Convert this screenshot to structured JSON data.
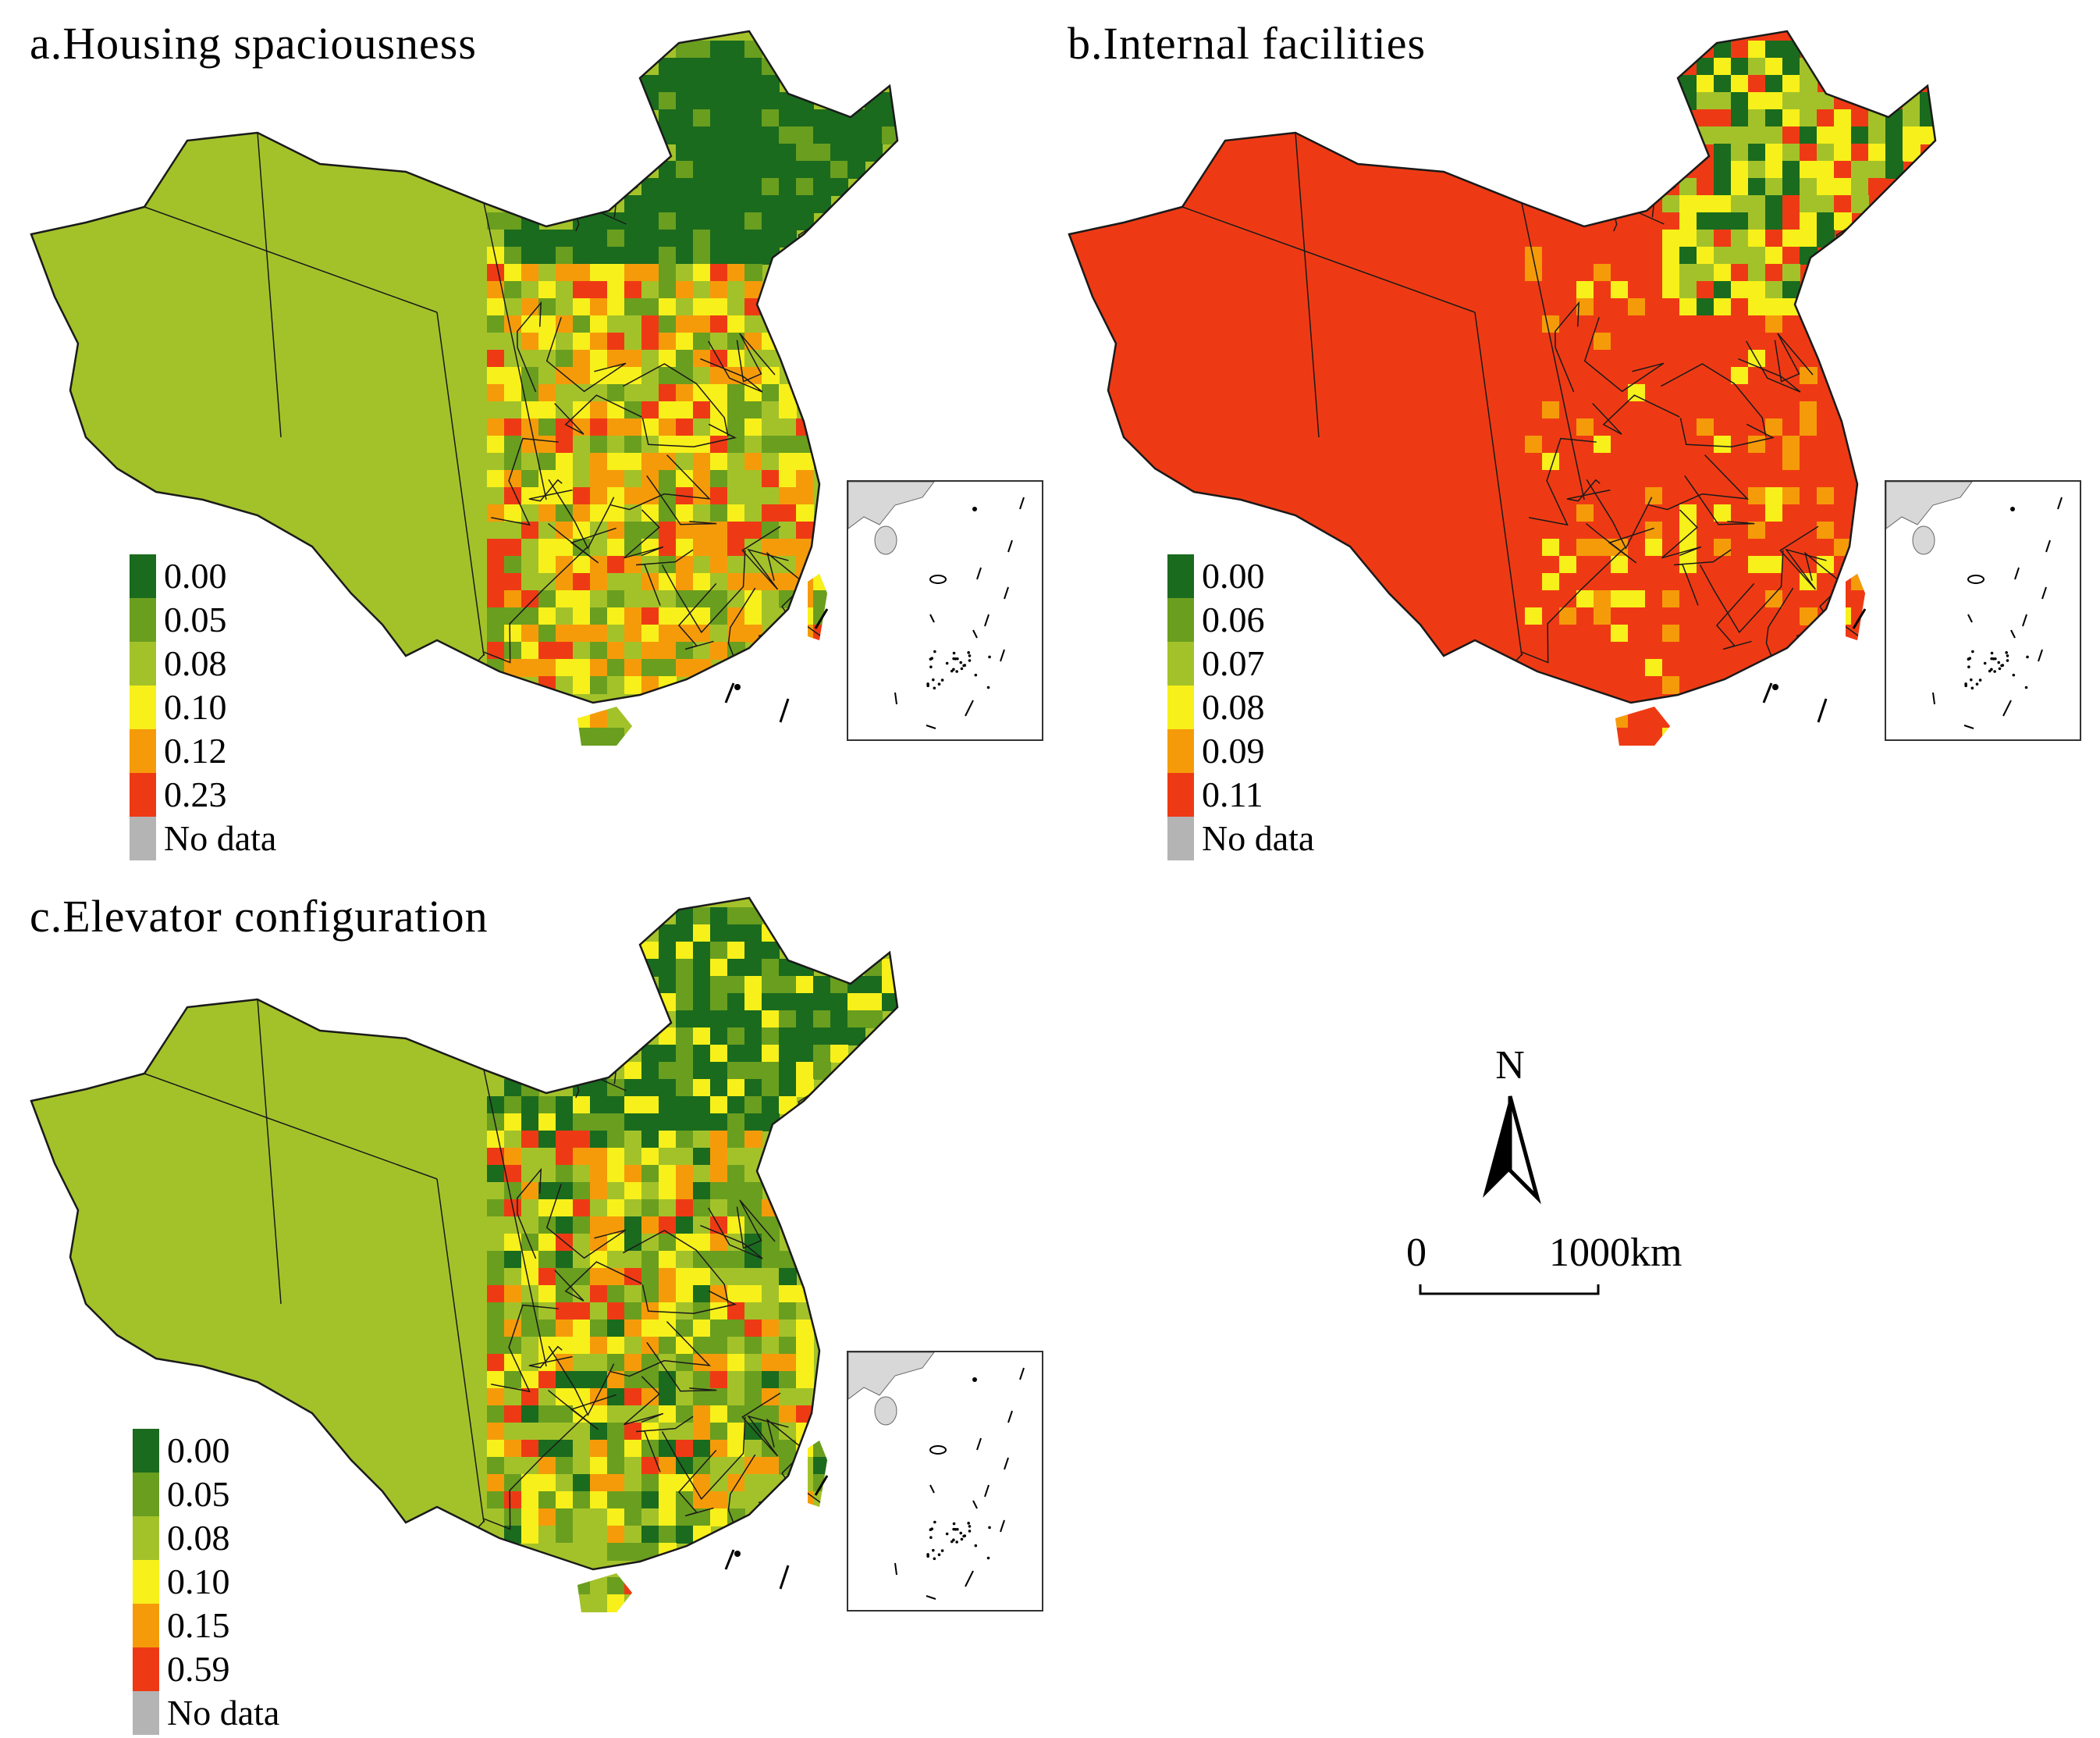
{
  "colors": {
    "c0": "#1a6b1e",
    "c1": "#6a9e1f",
    "c2": "#a3c22a",
    "c3": "#f7f01a",
    "c4": "#f59b0a",
    "c5": "#ee3a14",
    "nodata": "#b4b4b4",
    "border": "#1a1a1a"
  },
  "panels": [
    {
      "title": "a.Housing spaciousness",
      "legend": [
        "0.00",
        "0.05",
        "0.08",
        "0.10",
        "0.12",
        "0.23",
        "No data"
      ]
    },
    {
      "title": "b.Internal facilities",
      "legend": [
        "0.00",
        "0.06",
        "0.07",
        "0.08",
        "0.09",
        "0.11",
        "No data"
      ]
    },
    {
      "title": "c.Elevator configuration",
      "legend": [
        "0.00",
        "0.05",
        "0.08",
        "0.10",
        "0.15",
        "0.59",
        "No data"
      ]
    }
  ],
  "north_arrow": {
    "label": "N"
  },
  "scale_bar": {
    "start": "0",
    "end": "1000km"
  }
}
